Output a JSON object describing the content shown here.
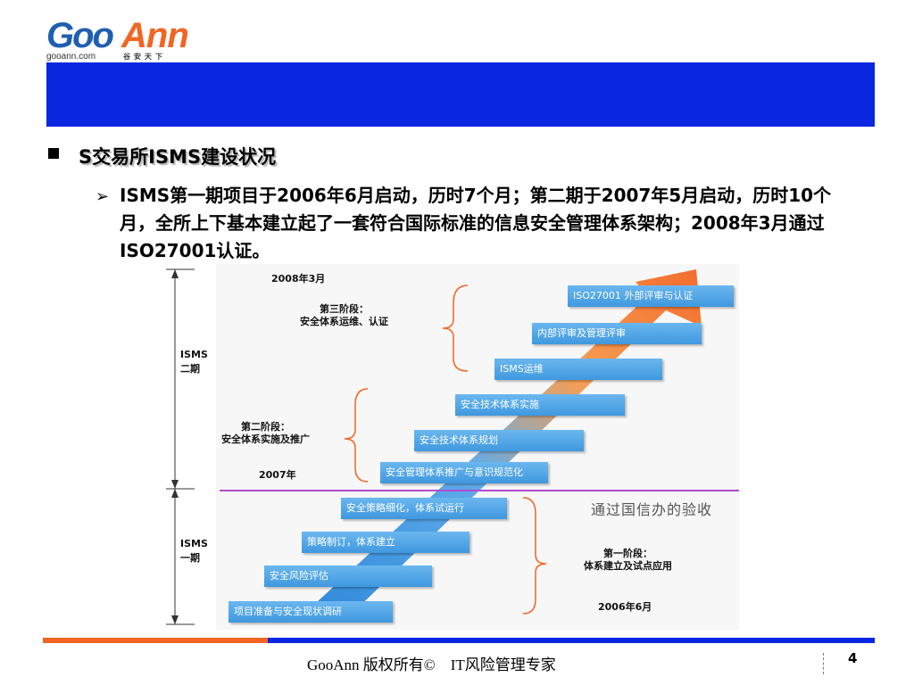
{
  "logo": {
    "name_left": "Goo",
    "name_right": "Ann",
    "url": "gooann.com",
    "cn": "谷安天下"
  },
  "section_title": "S交易所ISMS建设状况",
  "body": "ISMS第一期项目于2006年6月启动，历时7个月；第二期于2007年5月启动，历时10个月，全所上下基本建立起了一套符合国际标准的信息安全管理体系架构；2008年3月通过ISO27001认证。",
  "diagram": {
    "date_top": "2008年3月",
    "date_mid": "2007年",
    "date_bottom": "2006年6月",
    "phase2_label": "ISMS\n二期",
    "phase1_label": "ISMS\n一期",
    "stage3": "第三阶段：\n安全体系运维、认证",
    "stage2": "第二阶段：\n安全体系实施及推广",
    "stage1": "第一阶段：\n体系建立及试点应用",
    "verify": "通过国信办的验收",
    "steps": [
      "ISO27001 外部评审与认证",
      "内部评审及管理评审",
      "ISMS运维",
      "安全技术体系实施",
      "安全技术体系规划",
      "安全管理体系推广与意识规范化",
      "安全策略细化，体系试运行",
      "策略制订，体系建立",
      "安全风险评估",
      "项目准备与安全现状调研"
    ]
  },
  "footer": {
    "text": "GooAnn 版权所有©　IT风险管理专家",
    "page": "4"
  }
}
